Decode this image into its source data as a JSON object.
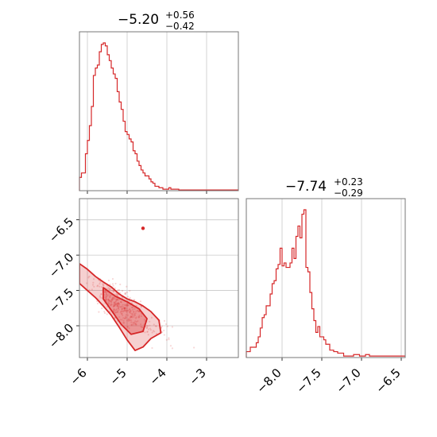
{
  "chart_data": [
    {
      "type": "histogram",
      "panel": "top-left",
      "title": {
        "value": "−5.20",
        "upper": "+0.56",
        "lower": "−0.42"
      },
      "xlim": [
        -6.2,
        -2.2
      ],
      "xticks": [
        -6,
        -5,
        -4,
        -3
      ],
      "grid": true,
      "bin_edges_start": -6.2,
      "bin_width": 0.05,
      "counts": [
        0.09,
        0.12,
        0.12,
        0.25,
        0.34,
        0.44,
        0.57,
        0.78,
        0.83,
        0.85,
        0.94,
        0.99,
        1.0,
        0.98,
        0.92,
        0.88,
        0.83,
        0.79,
        0.76,
        0.67,
        0.6,
        0.55,
        0.47,
        0.4,
        0.38,
        0.35,
        0.33,
        0.27,
        0.25,
        0.2,
        0.17,
        0.14,
        0.12,
        0.1,
        0.1,
        0.08,
        0.06,
        0.05,
        0.03,
        0.03,
        0.02,
        0.02,
        0.01,
        0.01,
        0.01,
        0.02,
        0.01,
        0.01,
        0.01,
        0.01,
        0.005,
        0.005,
        0.005,
        0.005,
        0.005,
        0.005,
        0.005,
        0.005,
        0.005,
        0.005,
        0.005,
        0.005,
        0.005,
        0.005,
        0.005,
        0.005,
        0.005,
        0.005,
        0.005,
        0.005,
        0.005,
        0.005,
        0.005,
        0.005,
        0.005,
        0.005,
        0.005,
        0.005,
        0.005,
        0.005
      ],
      "color": "#d62728"
    },
    {
      "type": "histogram",
      "panel": "bottom-right",
      "title": {
        "value": "−7.74",
        "upper": "+0.23",
        "lower": "−0.29"
      },
      "xlim": [
        -8.45,
        -6.45
      ],
      "xticks": [
        -8.0,
        -7.5,
        -7.0,
        -6.5
      ],
      "xtick_labels": [
        "−8.0",
        "−7.5",
        "−7.0",
        "−6.5"
      ],
      "grid": true,
      "bin_edges_start": -8.45,
      "bin_width": 0.025,
      "counts": [
        0.04,
        0.04,
        0.07,
        0.07,
        0.07,
        0.1,
        0.14,
        0.2,
        0.27,
        0.29,
        0.35,
        0.35,
        0.43,
        0.5,
        0.52,
        0.6,
        0.63,
        0.74,
        0.62,
        0.64,
        0.61,
        0.61,
        0.64,
        0.74,
        0.67,
        0.82,
        0.89,
        0.81,
        0.97,
        1.0,
        0.61,
        0.58,
        0.44,
        0.33,
        0.25,
        0.17,
        0.21,
        0.14,
        0.14,
        0.12,
        0.09,
        0.09,
        0.05,
        0.05,
        0.04,
        0.04,
        0.03,
        0.03,
        0.03,
        0.01,
        0.01,
        0.01,
        0.01,
        0.01,
        0.02,
        0.02,
        0.02,
        0.01,
        0.01,
        0.01,
        0.02,
        0.02,
        0.01,
        0.01,
        0.01,
        0.01,
        0.01,
        0.01,
        0.01,
        0.01,
        0.01,
        0.01,
        0.01,
        0.01,
        0.01,
        0.01,
        0.01,
        0.01,
        0.01,
        0.01
      ],
      "color": "#d62728"
    },
    {
      "type": "scatter",
      "panel": "bottom-left",
      "xlim": [
        -6.2,
        -2.2
      ],
      "ylim": [
        -8.45,
        -6.2
      ],
      "xticks": [
        -6,
        -5,
        -4,
        -3
      ],
      "yticks": [
        -8.0,
        -7.5,
        -7.0,
        -6.5
      ],
      "ytick_labels": [
        "−8.0",
        "−7.5",
        "−7.0",
        "−6.5"
      ],
      "grid": true,
      "color": "#d62728",
      "outlier_point": {
        "x": -4.6,
        "y": -6.62
      },
      "contours": [
        {
          "level": "outer",
          "points": [
            [
              -6.2,
              -7.12
            ],
            [
              -6.0,
              -7.2
            ],
            [
              -5.8,
              -7.3
            ],
            [
              -5.6,
              -7.38
            ],
            [
              -5.4,
              -7.45
            ],
            [
              -5.2,
              -7.55
            ],
            [
              -5.0,
              -7.62
            ],
            [
              -4.8,
              -7.66
            ],
            [
              -4.6,
              -7.72
            ],
            [
              -4.4,
              -7.8
            ],
            [
              -4.2,
              -7.92
            ],
            [
              -4.15,
              -8.1
            ],
            [
              -4.4,
              -8.18
            ],
            [
              -4.6,
              -8.3
            ],
            [
              -4.8,
              -8.35
            ],
            [
              -5.0,
              -8.2
            ],
            [
              -5.2,
              -8.02
            ],
            [
              -5.4,
              -7.85
            ],
            [
              -5.6,
              -7.72
            ],
            [
              -5.8,
              -7.6
            ],
            [
              -6.0,
              -7.5
            ],
            [
              -6.2,
              -7.4
            ]
          ]
        },
        {
          "level": "inner",
          "points": [
            [
              -5.6,
              -7.46
            ],
            [
              -5.3,
              -7.58
            ],
            [
              -5.0,
              -7.66
            ],
            [
              -4.7,
              -7.76
            ],
            [
              -4.5,
              -7.9
            ],
            [
              -4.6,
              -8.08
            ],
            [
              -4.9,
              -8.12
            ],
            [
              -5.15,
              -7.98
            ],
            [
              -5.4,
              -7.78
            ],
            [
              -5.6,
              -7.62
            ]
          ]
        }
      ]
    }
  ]
}
